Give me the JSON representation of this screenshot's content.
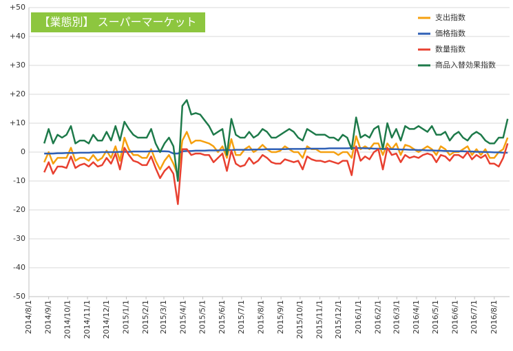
{
  "chart_data": {
    "type": "line",
    "title": "【業態別】 スーパーマーケット",
    "title_color": "#8dc63f",
    "x": [
      "2014/8/25",
      "2014/9/1",
      "2014/9/8",
      "2014/9/15",
      "2014/9/22",
      "2014/9/29",
      "2014/10/6",
      "2014/10/13",
      "2014/10/20",
      "2014/10/27",
      "2014/11/3",
      "2014/11/10",
      "2014/11/17",
      "2014/11/24",
      "2014/12/1",
      "2014/12/8",
      "2014/12/15",
      "2014/12/22",
      "2014/12/29",
      "2015/1/5",
      "2015/1/12",
      "2015/1/19",
      "2015/1/26",
      "2015/2/2",
      "2015/2/9",
      "2015/2/16",
      "2015/2/23",
      "2015/3/2",
      "2015/3/9",
      "2015/3/16",
      "2015/3/23",
      "2015/3/30",
      "2015/4/6",
      "2015/4/13",
      "2015/4/20",
      "2015/4/27",
      "2015/5/4",
      "2015/5/11",
      "2015/5/18",
      "2015/5/25",
      "2015/6/1",
      "2015/6/8",
      "2015/6/15",
      "2015/6/22",
      "2015/6/29",
      "2015/7/6",
      "2015/7/13",
      "2015/7/20",
      "2015/7/27",
      "2015/8/3",
      "2015/8/10",
      "2015/8/17",
      "2015/8/24",
      "2015/8/31",
      "2015/9/7",
      "2015/9/14",
      "2015/9/21",
      "2015/9/28",
      "2015/10/5",
      "2015/10/12",
      "2015/10/19",
      "2015/10/26",
      "2015/11/2",
      "2015/11/9",
      "2015/11/16",
      "2015/11/23",
      "2015/11/30",
      "2015/12/7",
      "2015/12/14",
      "2015/12/21",
      "2015/12/28",
      "2016/1/4",
      "2016/1/11",
      "2016/1/18",
      "2016/1/25",
      "2016/2/1",
      "2016/2/8",
      "2016/2/15",
      "2016/2/22",
      "2016/2/29",
      "2016/3/7",
      "2016/3/14",
      "2016/3/21",
      "2016/3/28",
      "2016/4/4",
      "2016/4/11",
      "2016/4/18",
      "2016/4/25",
      "2016/5/2",
      "2016/5/9",
      "2016/5/16",
      "2016/5/23",
      "2016/5/30",
      "2016/6/6",
      "2016/6/13",
      "2016/6/20",
      "2016/6/27",
      "2016/7/4",
      "2016/7/11",
      "2016/7/18",
      "2016/7/25",
      "2016/8/1",
      "2016/8/8",
      "2016/8/15",
      "2016/8/22"
    ],
    "series": [
      {
        "name": "支出指数",
        "color": "#f5a00f",
        "values": [
          -3.5,
          0,
          -4,
          -2,
          -2,
          -2,
          1.5,
          -3,
          -2,
          -2,
          -3,
          -1,
          -3,
          -2,
          0.5,
          -2,
          2,
          -3,
          5,
          1,
          -1,
          -1,
          -2,
          -2,
          1,
          -3,
          -6,
          -3,
          -1,
          -4,
          -8,
          4,
          7,
          3,
          4,
          4,
          3.5,
          3,
          2,
          0,
          2,
          -2,
          4.5,
          -1,
          -1,
          1,
          2,
          0,
          1,
          2.5,
          1,
          0,
          0,
          0.5,
          2,
          1,
          0,
          0,
          -2,
          2,
          1,
          1,
          0,
          0,
          0,
          0,
          -1,
          0,
          0,
          -2,
          5.5,
          1,
          2,
          1,
          3,
          3,
          -1,
          3,
          1,
          3,
          -1,
          2.5,
          2,
          1,
          0,
          1,
          2,
          1,
          -1,
          2,
          1,
          -1,
          0,
          0,
          1,
          2,
          -1,
          1,
          -1,
          1,
          -2,
          -2,
          0,
          1,
          5
        ]
      },
      {
        "name": "価格指数",
        "color": "#2e5fb5",
        "values": [
          -0.5,
          -0.5,
          -0.5,
          -0.4,
          -0.4,
          -0.3,
          -0.3,
          -0.3,
          -0.2,
          -0.2,
          -0.2,
          -0.1,
          -0.1,
          0,
          0,
          0,
          0,
          0.1,
          0.1,
          0.1,
          0.2,
          0.2,
          0.2,
          0.2,
          0.3,
          0.3,
          0.3,
          0.3,
          0.2,
          -0.5,
          -0.5,
          0.3,
          0.4,
          0.4,
          0.5,
          0.5,
          0.5,
          0.6,
          0.6,
          0.6,
          0.7,
          0.7,
          0.7,
          0.8,
          0.8,
          0.8,
          0.8,
          0.9,
          0.9,
          0.9,
          1,
          1,
          1,
          1,
          1,
          1.1,
          1.1,
          1.1,
          1.1,
          1.2,
          1.2,
          1.2,
          1.2,
          1.2,
          1.3,
          1.3,
          1.3,
          1.3,
          1.3,
          1.4,
          1.4,
          1.4,
          1.3,
          1.3,
          1.2,
          1.2,
          1.1,
          1.1,
          1,
          1,
          0.9,
          0.9,
          0.8,
          0.8,
          0.7,
          0.7,
          0.6,
          0.6,
          0.5,
          0.5,
          0.4,
          0.4,
          0.3,
          0.3,
          0.3,
          0.2,
          0.2,
          0.1,
          0.1,
          0,
          0,
          -0.1,
          -0.1,
          -0.2,
          -0.2
        ]
      },
      {
        "name": "数量指数",
        "color": "#e84030",
        "values": [
          -7,
          -3.5,
          -7.5,
          -5,
          -5,
          -5.5,
          -1.5,
          -5.5,
          -4.5,
          -4,
          -5,
          -3.5,
          -5,
          -4.5,
          -2,
          -4,
          -0.5,
          -6,
          1.5,
          -1,
          -3,
          -3.5,
          -4.5,
          -4.5,
          -1.5,
          -5.5,
          -9,
          -6.5,
          -5,
          -7.5,
          -18,
          1,
          1,
          -1,
          -0.5,
          -0.5,
          -1,
          -1,
          -3.5,
          -2,
          -0.5,
          -6.5,
          0.5,
          -4,
          -5,
          -4.5,
          -2,
          -4,
          -3,
          -1,
          -2,
          -3.5,
          -4,
          -4,
          -2.5,
          -3,
          -3.5,
          -3,
          -6,
          -1.5,
          -2.5,
          -3,
          -3,
          -3.5,
          -3,
          -3.5,
          -4,
          -3,
          -3,
          -8,
          2,
          -3,
          -1.5,
          -2.5,
          0,
          1,
          -6,
          1.5,
          -1,
          -0.5,
          -3.5,
          -1,
          -2,
          -1.5,
          -2,
          -1,
          -0.5,
          -1,
          -3.5,
          -1,
          -1.5,
          -3,
          -1,
          -1,
          -2,
          0,
          -2.5,
          -1,
          -2,
          -1,
          -4,
          -4,
          -5,
          -2,
          3
        ]
      },
      {
        "name": "商品入替効果指数",
        "color": "#1e7a4a",
        "values": [
          3,
          8,
          3,
          6,
          5,
          6,
          9,
          3,
          4,
          4,
          3,
          6,
          4,
          4,
          7,
          4,
          9,
          4,
          10.5,
          8,
          6,
          5,
          5,
          5,
          8,
          3,
          0,
          3,
          5,
          2,
          -10,
          16,
          18,
          13,
          13.5,
          13,
          11,
          9,
          6,
          7,
          8,
          -1,
          11.5,
          6,
          5,
          5,
          7,
          5,
          6,
          8,
          7,
          5,
          5,
          6,
          7,
          8,
          7,
          5,
          4,
          8,
          7,
          6,
          6,
          6,
          5,
          5,
          4,
          6,
          5,
          1,
          12,
          5,
          6,
          5,
          8,
          9,
          1,
          10,
          5,
          8,
          4,
          9,
          8,
          8,
          9,
          8,
          7,
          9,
          6,
          6,
          7,
          4,
          6,
          7,
          5,
          4,
          6,
          7,
          6,
          4,
          3,
          3,
          5,
          5,
          11.5
        ]
      }
    ],
    "xlim": [
      "2014/8/1",
      "2016/8/25"
    ],
    "xticks": [
      "2014/8/1",
      "2014/9/1",
      "2014/10/1",
      "2014/11/1",
      "2014/12/1",
      "2015/1/1",
      "2015/2/1",
      "2015/3/1",
      "2015/4/1",
      "2015/5/1",
      "2015/6/1",
      "2015/7/1",
      "2015/8/1",
      "2015/9/1",
      "2015/10/1",
      "2015/11/1",
      "2015/12/1",
      "2016/1/1",
      "2016/2/1",
      "2016/3/1",
      "2016/4/1",
      "2016/5/1",
      "2016/6/1",
      "2016/7/1",
      "2016/8/1"
    ],
    "ylim": [
      -50,
      50
    ],
    "yticks": [
      {
        "value": 50,
        "label": "+50"
      },
      {
        "value": 40,
        "label": "+40"
      },
      {
        "value": 30,
        "label": "+30"
      },
      {
        "value": 20,
        "label": "+20"
      },
      {
        "value": 10,
        "label": "+10"
      },
      0,
      -10,
      -20,
      -30,
      -40,
      -50
    ],
    "grid": true,
    "legend": "upper right"
  }
}
